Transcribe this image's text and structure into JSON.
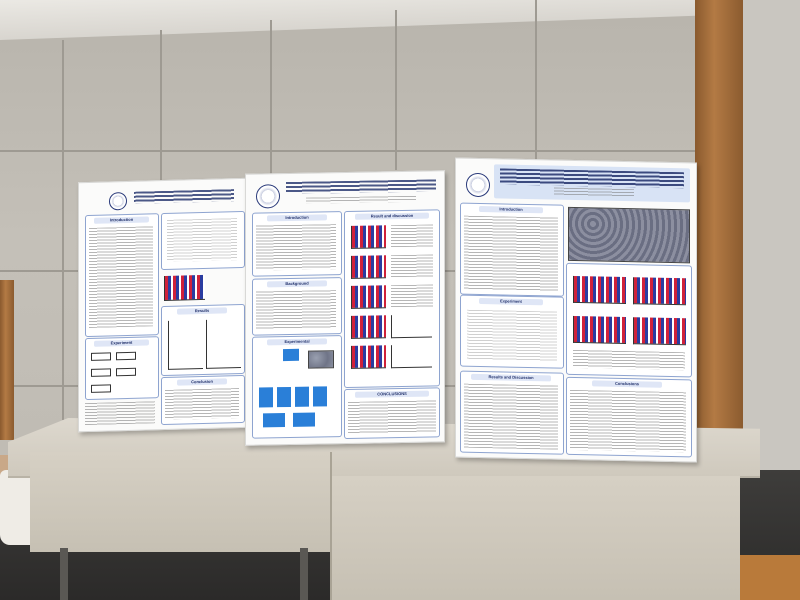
{
  "scene": {
    "description_colors": {
      "wall": "#bdb9b1",
      "wood": "#b37a44",
      "table": "#d6d0c4",
      "poster_title": "#1f2f6a"
    }
  },
  "poster_left": {
    "sections": [
      "Introduction",
      "Experiment",
      "Results",
      "Conclusion"
    ]
  },
  "poster_middle": {
    "sections": [
      "Introduction",
      "Background",
      "Experimental",
      "Result and discussion",
      "CONCLUSIONS"
    ]
  },
  "poster_right": {
    "sections": [
      "Introduction",
      "Experiment",
      "Results and Discussion",
      "Conclusions"
    ]
  }
}
